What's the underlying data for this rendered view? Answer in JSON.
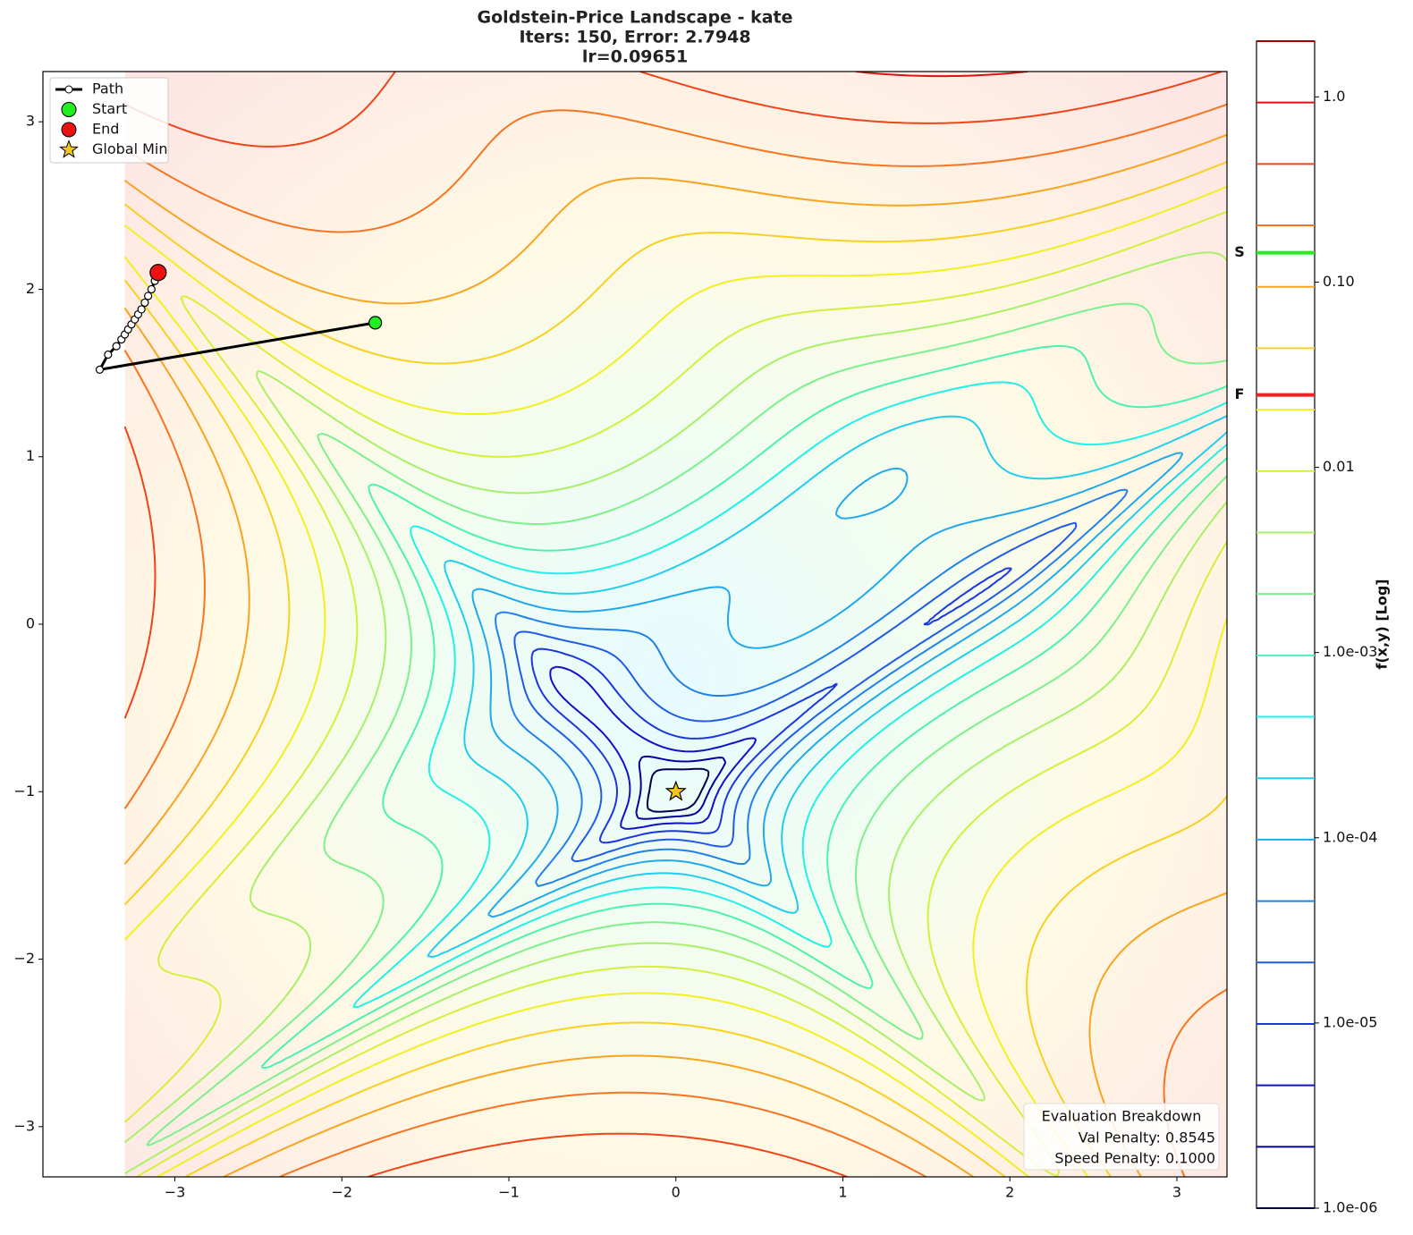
{
  "chart_data": {
    "type": "contour",
    "title_lines": [
      "Goldstein-Price Landscape - kate",
      "Iters: 150, Error: 2.7948",
      "lr=0.09651"
    ],
    "xlim": [
      -3.79,
      3.3
    ],
    "ylim": [
      -3.3,
      3.3
    ],
    "xticks": [
      {
        "value": -3,
        "label": "−3"
      },
      {
        "value": -2,
        "label": "−2"
      },
      {
        "value": -1,
        "label": "−1"
      },
      0,
      1,
      2,
      3
    ],
    "yticks": [
      {
        "value": -3,
        "label": "−3"
      },
      {
        "value": -2,
        "label": "−2"
      },
      {
        "value": -1,
        "label": "−1"
      },
      0,
      1,
      2,
      3
    ],
    "contour": {
      "xlim": [
        -3.3,
        3.3
      ],
      "ylim": [
        -3.3,
        3.3
      ],
      "levels": [
        1e-06,
        2.146e-06,
        4.606e-06,
        9.883e-06,
        2.121e-05,
        4.552e-05,
        9.768e-05,
        0.0002096,
        0.0004498,
        0.0009654,
        0.002072,
        0.004445,
        0.009541,
        0.02048,
        0.04394,
        0.0943,
        0.2024,
        0.4343,
        0.932,
        2.0
      ],
      "colors": [
        "#00004a",
        "#00009a",
        "#1010c8",
        "#1a36dc",
        "#1f5ae4",
        "#2080e8",
        "#20a8ec",
        "#20cdee",
        "#20f0e6",
        "#4cf0b4",
        "#7cf08c",
        "#a8f068",
        "#d4f03a",
        "#f2f020",
        "#f8d020",
        "#f8a420",
        "#f87420",
        "#f04418",
        "#e01010",
        "#a00000"
      ]
    },
    "series": [
      {
        "name": "Path",
        "color": "#000000",
        "x": [
          -1.8,
          -3.45,
          -3.4,
          -3.35,
          -3.32,
          -3.3,
          -3.28,
          -3.26,
          -3.24,
          -3.22,
          -3.2,
          -3.18,
          -3.16,
          -3.14,
          -3.12,
          -3.1
        ],
        "y": [
          1.8,
          1.52,
          1.61,
          1.66,
          1.7,
          1.73,
          1.76,
          1.79,
          1.82,
          1.85,
          1.88,
          1.92,
          1.96,
          2.0,
          2.05,
          2.1
        ]
      },
      {
        "name": "Start",
        "color": "#22ee22",
        "x": [
          -1.8
        ],
        "y": [
          1.8
        ]
      },
      {
        "name": "End",
        "color": "#ee1111",
        "x": [
          -3.1
        ],
        "y": [
          2.1
        ]
      },
      {
        "name": "Global Min",
        "color": "#f5c518",
        "marker": "star",
        "x": [
          0
        ],
        "y": [
          -1
        ]
      }
    ],
    "legend": "upper left",
    "colorbar": {
      "label": "f(x,y) [Log]",
      "scale": "log",
      "lim": [
        1e-06,
        2
      ],
      "ticks": [
        {
          "value": 1e-06,
          "label": "1.0e-06"
        },
        {
          "value": 1e-05,
          "label": "1.0e-05"
        },
        {
          "value": 0.0001,
          "label": "1.0e-04"
        },
        {
          "value": 0.001,
          "label": "1.0e-03"
        },
        0.01,
        {
          "value": 0.1,
          "label": "0.10"
        },
        {
          "value": 1,
          "label": "1.0"
        }
      ],
      "markers": [
        {
          "label": "S",
          "value": 0.144,
          "color": "#22ee22"
        },
        {
          "label": "F",
          "value": 0.0246,
          "color": "#ee2222"
        }
      ]
    },
    "evaluation": {
      "title": "Evaluation Breakdown",
      "lines": [
        "Val Penalty: 0.8545",
        "Speed Penalty: 0.1000"
      ]
    }
  }
}
